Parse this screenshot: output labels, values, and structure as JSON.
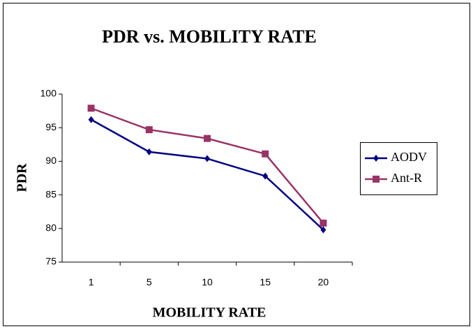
{
  "chart_data": {
    "type": "line",
    "title": "PDR vs. MOBILITY RATE",
    "x_label": "MOBILITY RATE",
    "y_label": "PDR",
    "categories": [
      "1",
      "5",
      "10",
      "15",
      "20"
    ],
    "series": [
      {
        "name": "AODV",
        "color": "#000080",
        "marker": "diamond",
        "values": [
          96.2,
          91.4,
          90.4,
          87.8,
          79.8
        ]
      },
      {
        "name": "Ant-R",
        "color": "#993366",
        "marker": "square",
        "values": [
          97.9,
          94.7,
          93.4,
          91.1,
          80.8
        ]
      }
    ],
    "ylim": [
      75,
      100
    ],
    "yticks": [
      75,
      80,
      85,
      90,
      95,
      100
    ],
    "grid": false,
    "legend": "right"
  }
}
